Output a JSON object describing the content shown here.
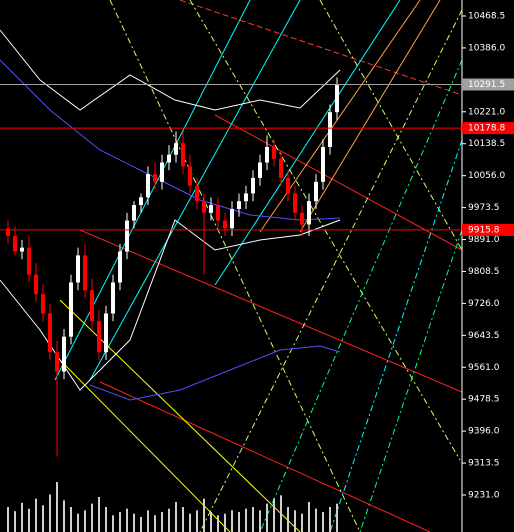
{
  "chart_data": {
    "type": "candlestick",
    "ylim": [
      9135.4,
      10509.8
    ],
    "yticks": [
      10468.5,
      {
        "value": 10386,
        "label": "10386.0"
      },
      {
        "value": 10221,
        "label": "10221.0"
      },
      10138.5,
      {
        "value": 10056,
        "label": "10056.0"
      },
      9973.5,
      {
        "value": 9891,
        "label": "9891.0"
      },
      9808.5,
      {
        "value": 9726,
        "label": "9726.0"
      },
      9643.5,
      {
        "value": 9561,
        "label": "9561.0"
      },
      9478.5,
      {
        "value": 9396,
        "label": "9396.0"
      },
      9313.5,
      {
        "value": 9231,
        "label": "9231.0"
      }
    ],
    "price_lines": [
      {
        "value": 10291.5,
        "color": "#a0a0a0"
      },
      {
        "value": 10178.8,
        "color": "#ff0000"
      },
      {
        "value": 9915.8,
        "color": "#ff0000"
      }
    ],
    "up_color": "#ffffff",
    "down_color": "#ff0000",
    "volume_color": "#d0d0d0",
    "open": [
      9920,
      9900,
      9860,
      9870,
      9800,
      9750,
      9700,
      9600,
      9550,
      9640,
      9780,
      9850,
      9760,
      9680,
      9600,
      9700,
      9780,
      9860,
      9940,
      9980,
      10000,
      10060,
      10040,
      10090,
      10110,
      10140,
      10080,
      10030,
      9990,
      9960,
      9980,
      9940,
      9920,
      9970,
      9990,
      10010,
      10050,
      10090,
      10130,
      10100,
      10050,
      10010,
      9960,
      9930,
      9990,
      10040,
      10130,
      10220
    ],
    "high": [
      9940,
      9925,
      9890,
      9900,
      9830,
      9775,
      9725,
      9630,
      9660,
      9800,
      9870,
      9880,
      9790,
      9710,
      9720,
      9800,
      9880,
      9960,
      9990,
      10010,
      10080,
      10090,
      10110,
      10135,
      10170,
      10170,
      10110,
      10050,
      10010,
      10000,
      10000,
      9960,
      9990,
      10010,
      10030,
      10070,
      10110,
      10160,
      10150,
      10120,
      10070,
      10030,
      9980,
      10010,
      10060,
      10150,
      10240,
      10310
    ],
    "low": [
      9880,
      9850,
      9840,
      9780,
      9730,
      9680,
      9580,
      9330,
      9530,
      9620,
      9760,
      9740,
      9660,
      9580,
      9580,
      9680,
      9760,
      9840,
      9920,
      9960,
      9980,
      10020,
      10020,
      10070,
      10090,
      10060,
      10010,
      9970,
      9800,
      9940,
      9920,
      9900,
      9900,
      9950,
      9970,
      9990,
      10030,
      10070,
      10080,
      10030,
      9990,
      9940,
      9900,
      9900,
      9970,
      10020,
      10110,
      10200
    ],
    "close": [
      9900,
      9860,
      9870,
      9800,
      9750,
      9700,
      9600,
      9550,
      9640,
      9780,
      9850,
      9760,
      9680,
      9600,
      9700,
      9780,
      9860,
      9940,
      9980,
      10000,
      10060,
      10040,
      10090,
      10110,
      10140,
      10080,
      10030,
      9990,
      9960,
      9980,
      9940,
      9920,
      9970,
      9990,
      10010,
      10050,
      10090,
      10130,
      10100,
      10050,
      10010,
      9960,
      9930,
      9990,
      10040,
      10130,
      10220,
      10290
    ],
    "volume": [
      30,
      25,
      35,
      28,
      40,
      32,
      45,
      60,
      38,
      30,
      22,
      26,
      34,
      42,
      30,
      20,
      24,
      28,
      22,
      18,
      26,
      20,
      24,
      28,
      36,
      30,
      22,
      26,
      40,
      24,
      20,
      22,
      26,
      24,
      28,
      30,
      26,
      34,
      40,
      44,
      30,
      26,
      22,
      36,
      28,
      24,
      30,
      34
    ]
  }
}
